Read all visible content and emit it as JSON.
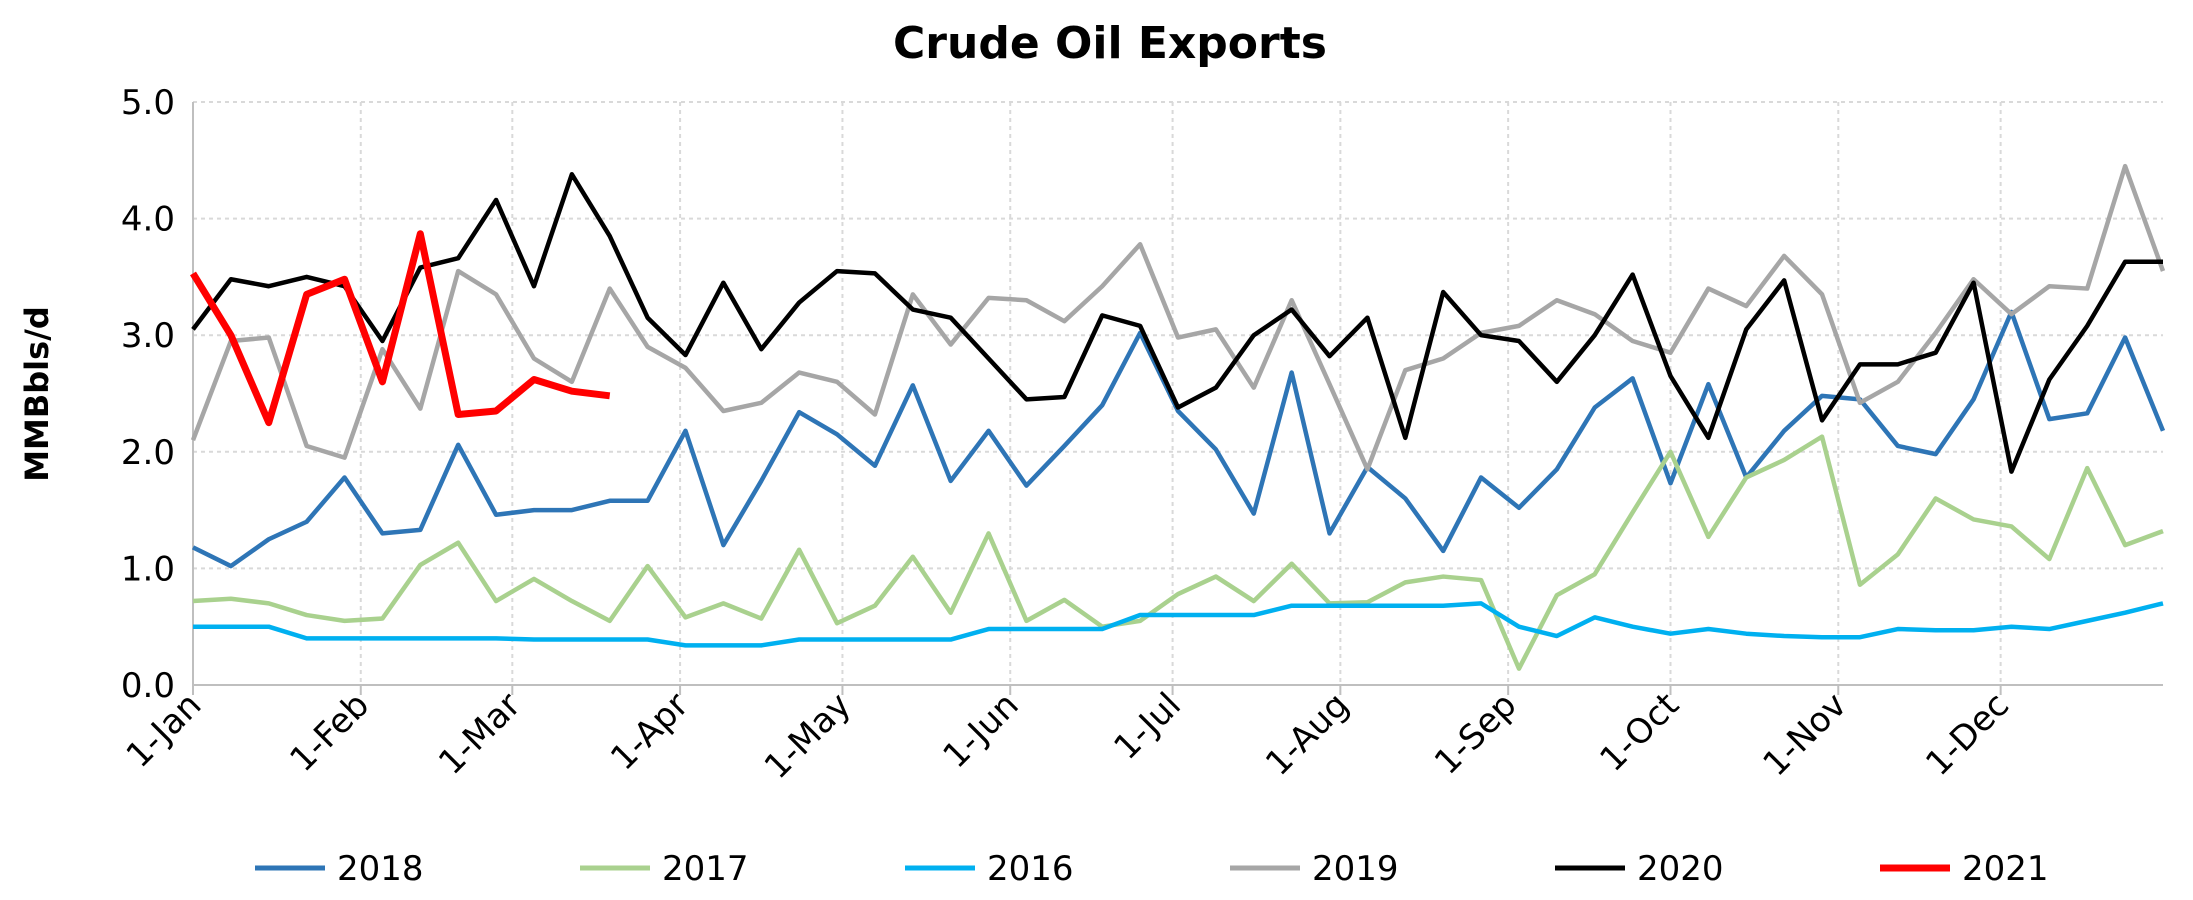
{
  "chart_data": {
    "type": "line",
    "title": "Crude Oil Exports",
    "y_label": "MMBbls/d",
    "x": [
      0,
      7,
      14,
      21,
      28,
      35,
      42,
      49,
      56,
      63,
      70,
      77,
      84,
      91,
      98,
      105,
      112,
      119,
      126,
      133,
      140,
      147,
      154,
      161,
      168,
      175,
      182,
      189,
      196,
      203,
      210,
      217,
      224,
      231,
      238,
      245,
      252,
      259,
      266,
      273,
      280,
      287,
      294,
      301,
      308,
      315,
      322,
      329,
      336,
      343,
      350,
      357,
      364
    ],
    "xlim": [
      0,
      364
    ],
    "xticks": [
      {
        "value": 0,
        "label": "1-Jan"
      },
      {
        "value": 31,
        "label": "1-Feb"
      },
      {
        "value": 59,
        "label": "1-Mar"
      },
      {
        "value": 90,
        "label": "1-Apr"
      },
      {
        "value": 120,
        "label": "1-May"
      },
      {
        "value": 151,
        "label": "1-Jun"
      },
      {
        "value": 181,
        "label": "1-Jul"
      },
      {
        "value": 212,
        "label": "1-Aug"
      },
      {
        "value": 243,
        "label": "1-Sep"
      },
      {
        "value": 273,
        "label": "1-Oct"
      },
      {
        "value": 304,
        "label": "1-Nov"
      },
      {
        "value": 334,
        "label": "1-Dec"
      }
    ],
    "ylim": [
      0,
      5
    ],
    "yticks": [
      {
        "value": 0,
        "label": "0.0"
      },
      {
        "value": 1,
        "label": "1.0"
      },
      {
        "value": 2,
        "label": "2.0"
      },
      {
        "value": 3,
        "label": "3.0"
      },
      {
        "value": 4,
        "label": "4.0"
      },
      {
        "value": 5,
        "label": "5.0"
      }
    ],
    "grid": true,
    "legend": "bottom",
    "series": [
      {
        "name": "2018",
        "color": "#2e75b6",
        "values": [
          1.18,
          1.02,
          1.25,
          1.4,
          1.78,
          1.3,
          1.33,
          2.06,
          1.46,
          1.5,
          1.5,
          1.58,
          1.58,
          2.18,
          1.2,
          1.75,
          2.34,
          2.15,
          1.88,
          2.57,
          1.75,
          2.18,
          1.71,
          2.05,
          2.4,
          3.02,
          2.35,
          2.02,
          1.47,
          2.68,
          1.3,
          1.87,
          1.6,
          1.15,
          1.78,
          1.52,
          1.85,
          2.38,
          2.63,
          1.73,
          2.58,
          1.78,
          2.18,
          2.48,
          2.45,
          2.05,
          1.98,
          2.45,
          3.2,
          2.28,
          2.33,
          2.98,
          2.18
        ]
      },
      {
        "name": "2017",
        "color": "#a9d18e",
        "values": [
          0.72,
          0.74,
          0.7,
          0.6,
          0.55,
          0.57,
          1.03,
          1.22,
          0.72,
          0.91,
          0.72,
          0.55,
          1.02,
          0.58,
          0.7,
          0.57,
          1.16,
          0.53,
          0.68,
          1.1,
          0.62,
          1.3,
          0.55,
          0.73,
          0.5,
          0.55,
          0.78,
          0.93,
          0.72,
          1.04,
          0.7,
          0.71,
          0.88,
          0.93,
          0.9,
          0.14,
          0.77,
          0.95,
          1.48,
          2.0,
          1.27,
          1.78,
          1.93,
          2.13,
          0.86,
          1.12,
          1.6,
          1.42,
          1.36,
          1.08,
          1.86,
          1.2,
          1.32
        ]
      },
      {
        "name": "2016",
        "color": "#00b0f0",
        "values": [
          0.5,
          0.5,
          0.5,
          0.4,
          0.4,
          0.4,
          0.4,
          0.4,
          0.4,
          0.39,
          0.39,
          0.39,
          0.39,
          0.34,
          0.34,
          0.34,
          0.39,
          0.39,
          0.39,
          0.39,
          0.39,
          0.48,
          0.48,
          0.48,
          0.48,
          0.6,
          0.6,
          0.6,
          0.6,
          0.68,
          0.68,
          0.68,
          0.68,
          0.68,
          0.7,
          0.5,
          0.42,
          0.58,
          0.5,
          0.44,
          0.48,
          0.44,
          0.42,
          0.41,
          0.41,
          0.48,
          0.47,
          0.47,
          0.5,
          0.48,
          0.55,
          0.62,
          0.7
        ]
      },
      {
        "name": "2019",
        "color": "#a6a6a6",
        "values": [
          2.1,
          2.95,
          2.98,
          2.05,
          1.95,
          2.88,
          2.37,
          3.55,
          3.35,
          2.8,
          2.6,
          3.4,
          2.9,
          2.72,
          2.35,
          2.42,
          2.68,
          2.6,
          2.32,
          3.35,
          2.92,
          3.32,
          3.3,
          3.12,
          3.42,
          3.78,
          2.98,
          3.05,
          2.55,
          3.3,
          2.58,
          1.85,
          2.7,
          2.8,
          3.02,
          3.08,
          3.3,
          3.18,
          2.95,
          2.85,
          3.4,
          3.25,
          3.68,
          3.35,
          2.42,
          2.6,
          3.02,
          3.48,
          3.18,
          3.42,
          3.4,
          4.45,
          3.55
        ]
      },
      {
        "name": "2020",
        "color": "#000000",
        "values": [
          3.05,
          3.48,
          3.42,
          3.5,
          3.42,
          2.95,
          3.58,
          3.66,
          4.16,
          3.42,
          4.38,
          3.85,
          3.15,
          2.83,
          3.45,
          2.88,
          3.28,
          3.55,
          3.53,
          3.22,
          3.15,
          2.8,
          2.45,
          2.47,
          3.17,
          3.08,
          2.38,
          2.55,
          3.0,
          3.22,
          2.82,
          3.15,
          2.12,
          3.37,
          3.0,
          2.95,
          2.6,
          3.0,
          3.52,
          2.65,
          2.12,
          3.05,
          3.47,
          2.27,
          2.75,
          2.75,
          2.85,
          3.45,
          1.83,
          2.62,
          3.08,
          3.63,
          3.63
        ]
      },
      {
        "name": "2021",
        "color": "#ff0000",
        "values": [
          3.53,
          3.0,
          2.25,
          3.35,
          3.48,
          2.6,
          3.87,
          2.32,
          2.35,
          2.62,
          2.52,
          2.48,
          null,
          null,
          null,
          null,
          null,
          null,
          null,
          null,
          null,
          null,
          null,
          null,
          null,
          null,
          null,
          null,
          null,
          null,
          null,
          null,
          null,
          null,
          null,
          null,
          null,
          null,
          null,
          null,
          null,
          null,
          null,
          null,
          null,
          null,
          null,
          null,
          null,
          null,
          null,
          null,
          null
        ]
      }
    ]
  }
}
